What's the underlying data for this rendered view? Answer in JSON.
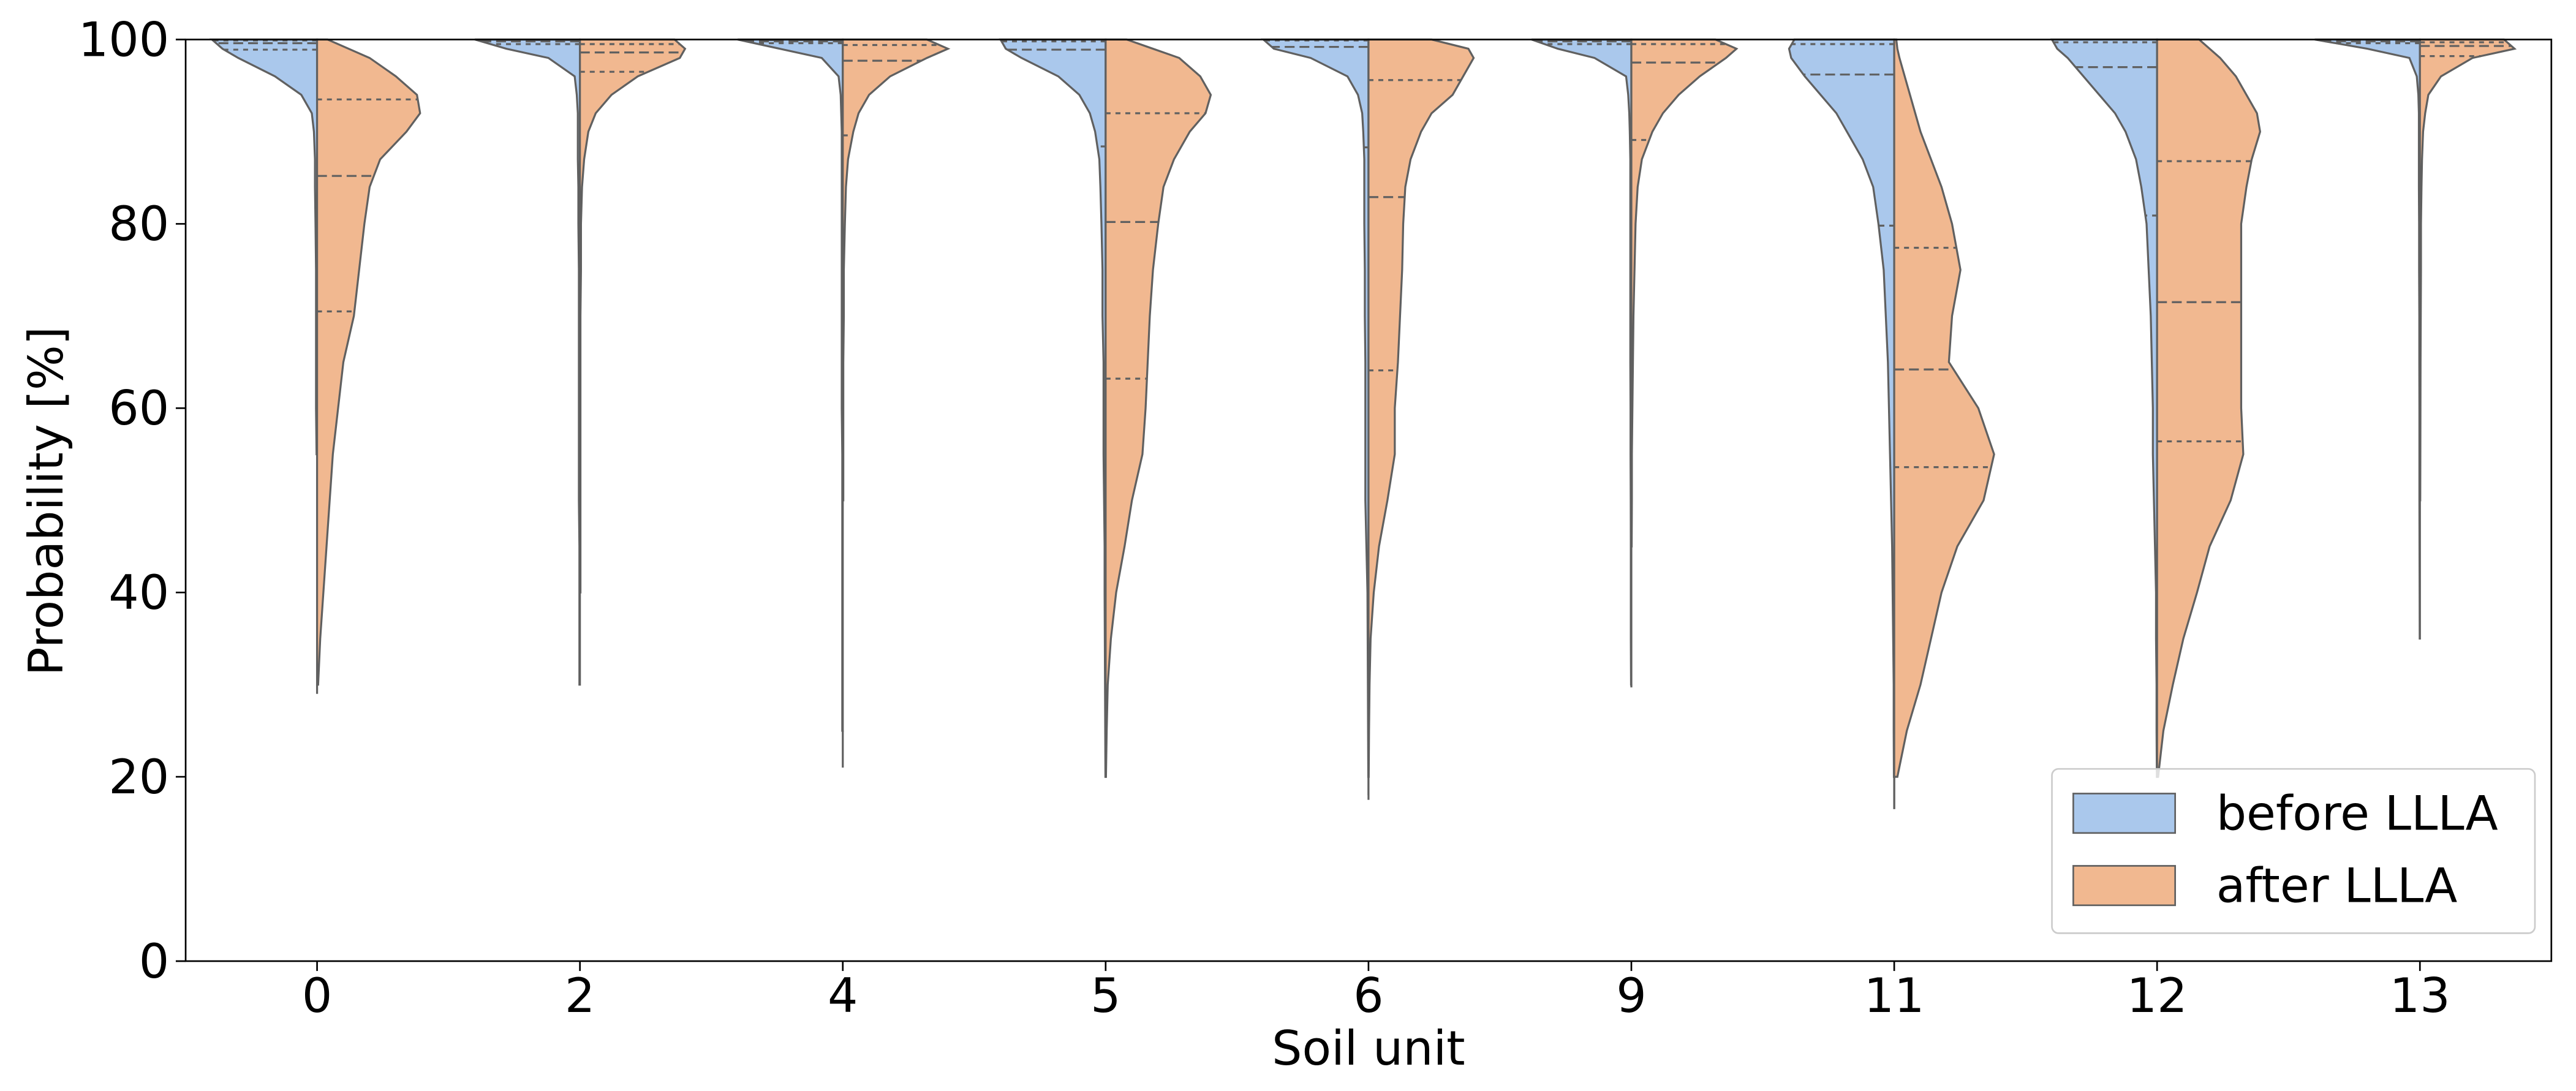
{
  "chart_data": {
    "type": "violin",
    "xlabel": "Soil unit",
    "ylabel": "Probability [%]",
    "categories": [
      "0",
      "2",
      "4",
      "5",
      "6",
      "9",
      "11",
      "12",
      "13"
    ],
    "ylim": [
      0,
      100
    ],
    "yticks": [
      0,
      20,
      40,
      60,
      80,
      100
    ],
    "legend": "lower right",
    "density_y": [
      100,
      99,
      98,
      96,
      94,
      92,
      90,
      87,
      84,
      80,
      75,
      70,
      65,
      60,
      55,
      50,
      45,
      40,
      35,
      30,
      25,
      20
    ],
    "series": [
      {
        "name": "before LLLA",
        "color": "#aac8ec",
        "violins": [
          {
            "min": 55,
            "quartiles": [
              98.9,
              99.6,
              99.9
            ],
            "density": [
              1.0,
              0.9,
              0.75,
              0.4,
              0.15,
              0.05,
              0.03,
              0.02,
              0.02,
              0.015,
              0.01,
              0.01,
              0.01,
              0.01,
              0.005,
              null,
              null,
              null,
              null,
              null,
              null,
              null
            ]
          },
          {
            "min": 30,
            "quartiles": [
              99.5,
              99.8,
              99.95
            ],
            "density": [
              1.0,
              0.7,
              0.3,
              0.05,
              0.03,
              0.02,
              0.02,
              0.02,
              0.015,
              0.015,
              0.01,
              0.01,
              0.01,
              0.01,
              0.01,
              0.01,
              0.005,
              0.005,
              0.005,
              0.005,
              null,
              null
            ]
          },
          {
            "min": 21,
            "quartiles": [
              99.6,
              99.8,
              99.95
            ],
            "density": [
              1.0,
              0.6,
              0.2,
              0.04,
              0.02,
              0.015,
              0.01,
              0.01,
              0.01,
              0.01,
              0.01,
              0.01,
              0.01,
              0.01,
              0.005,
              0.005,
              0.005,
              0.005,
              0.005,
              0.005,
              0.005,
              null
            ]
          },
          {
            "min": 20,
            "quartiles": [
              88.4,
              98.9,
              99.8
            ],
            "density": [
              1.0,
              0.95,
              0.8,
              0.45,
              0.25,
              0.15,
              0.1,
              0.06,
              0.05,
              0.04,
              0.03,
              0.03,
              0.02,
              0.02,
              0.02,
              0.015,
              0.01,
              0.01,
              0.008,
              0.006,
              0.004,
              0.002
            ]
          },
          {
            "min": 17.5,
            "quartiles": [
              88.3,
              99.2,
              99.9
            ],
            "density": [
              1.0,
              0.9,
              0.55,
              0.2,
              0.1,
              0.06,
              0.05,
              0.04,
              0.04,
              0.04,
              0.035,
              0.035,
              0.03,
              0.03,
              0.03,
              0.03,
              0.02,
              0.01,
              0.008,
              0.006,
              0.004,
              0.002
            ]
          },
          {
            "min": 29.7,
            "quartiles": [
              99.5,
              99.8,
              99.95
            ],
            "density": [
              0.95,
              0.7,
              0.35,
              0.05,
              0.03,
              0.02,
              0.015,
              0.01,
              0.01,
              0.01,
              0.01,
              0.01,
              0.01,
              0.008,
              0.008,
              0.006,
              0.005,
              0.005,
              0.005,
              0.003,
              null,
              null
            ]
          },
          {
            "min": 16.5,
            "quartiles": [
              79.8,
              96.2,
              99.5
            ],
            "density": [
              0.95,
              1.0,
              0.98,
              0.85,
              0.7,
              0.55,
              0.45,
              0.3,
              0.2,
              0.15,
              0.1,
              0.08,
              0.06,
              0.05,
              0.04,
              0.03,
              0.02,
              0.015,
              0.01,
              0.005,
              0.005,
              0.003
            ]
          },
          {
            "min": 20,
            "quartiles": [
              80.9,
              97,
              99.7
            ],
            "density": [
              1.0,
              0.95,
              0.85,
              0.7,
              0.55,
              0.4,
              0.3,
              0.2,
              0.15,
              0.1,
              0.08,
              0.06,
              0.05,
              0.04,
              0.04,
              0.03,
              0.02,
              0.01,
              0.01,
              0.005,
              0.005,
              0.002
            ]
          },
          {
            "min": 35,
            "quartiles": [
              99.6,
              99.8,
              99.95
            ],
            "density": [
              1.0,
              0.5,
              0.1,
              0.03,
              0.015,
              0.01,
              0.01,
              0.01,
              0.01,
              0.008,
              0.008,
              0.006,
              0.006,
              0.005,
              0.005,
              0.005,
              0.004,
              0.003,
              0.002,
              null,
              null,
              null
            ]
          }
        ]
      },
      {
        "name": "after LLLA",
        "color": "#f1b890",
        "violins": [
          {
            "min": 29,
            "quartiles": [
              70.5,
              85.2,
              93.5
            ],
            "density": [
              0.1,
              0.3,
              0.5,
              0.75,
              0.95,
              0.98,
              0.85,
              0.6,
              0.5,
              0.45,
              0.4,
              0.35,
              0.25,
              0.2,
              0.15,
              0.12,
              0.09,
              0.06,
              0.03,
              0.01,
              null,
              null
            ]
          },
          {
            "min": 40,
            "quartiles": [
              96.5,
              98.6,
              99.5
            ],
            "density": [
              0.9,
              1.0,
              0.95,
              0.55,
              0.3,
              0.15,
              0.08,
              0.04,
              0.02,
              0.01,
              0.01,
              0.005,
              0.005,
              0.005,
              0.005,
              0.005,
              0.005,
              0.005,
              null,
              null,
              null,
              null
            ]
          },
          {
            "min": 50,
            "quartiles": [
              89.6,
              97.7,
              99.4
            ],
            "density": [
              0.8,
              1.0,
              0.8,
              0.45,
              0.25,
              0.15,
              0.1,
              0.05,
              0.03,
              0.02,
              0.01,
              0.01,
              0.005,
              0.005,
              0.005,
              0.005,
              null,
              null,
              null,
              null,
              null,
              null
            ]
          },
          {
            "min": 20,
            "quartiles": [
              63.2,
              80.2,
              92
            ],
            "density": [
              0.2,
              0.45,
              0.7,
              0.9,
              1.0,
              0.95,
              0.8,
              0.65,
              0.55,
              0.5,
              0.45,
              0.42,
              0.4,
              0.38,
              0.35,
              0.25,
              0.18,
              0.1,
              0.05,
              0.02,
              0.01,
              0.003
            ]
          },
          {
            "min": 18,
            "quartiles": [
              64.1,
              82.9,
              95.6
            ],
            "density": [
              0.6,
              0.95,
              1.0,
              0.9,
              0.8,
              0.6,
              0.5,
              0.4,
              0.35,
              0.33,
              0.32,
              0.3,
              0.28,
              0.25,
              0.25,
              0.18,
              0.1,
              0.05,
              0.02,
              0.01,
              0.005,
              0.002
            ]
          },
          {
            "min": 45,
            "quartiles": [
              89.1,
              97.5,
              99.5
            ],
            "density": [
              0.8,
              1.0,
              0.9,
              0.65,
              0.45,
              0.3,
              0.2,
              0.1,
              0.06,
              0.04,
              0.03,
              0.02,
              0.015,
              0.01,
              0.005,
              0.005,
              0.003,
              null,
              null,
              null,
              null,
              null
            ]
          },
          {
            "min": 16.5,
            "quartiles": [
              53.6,
              64.2,
              77.4
            ],
            "density": [
              0.02,
              0.03,
              0.05,
              0.1,
              0.15,
              0.2,
              0.25,
              0.35,
              0.45,
              0.55,
              0.63,
              0.55,
              0.52,
              0.8,
              0.95,
              0.85,
              0.6,
              0.45,
              0.35,
              0.25,
              0.12,
              0.03
            ]
          },
          {
            "min": 20,
            "quartiles": [
              56.4,
              71.5,
              86.8
            ],
            "density": [
              0.4,
              0.5,
              0.6,
              0.75,
              0.85,
              0.95,
              0.98,
              0.9,
              0.85,
              0.8,
              0.8,
              0.8,
              0.8,
              0.8,
              0.82,
              0.7,
              0.5,
              0.38,
              0.25,
              0.15,
              0.06,
              0.01
            ]
          },
          {
            "min": 50,
            "quartiles": [
              98.2,
              99.3,
              99.7
            ],
            "density": [
              0.8,
              0.9,
              0.5,
              0.2,
              0.08,
              0.05,
              0.03,
              0.02,
              0.015,
              0.01,
              0.01,
              0.008,
              0.006,
              0.005,
              0.004,
              0.003,
              null,
              null,
              null,
              null,
              null,
              null
            ]
          }
        ]
      }
    ]
  }
}
